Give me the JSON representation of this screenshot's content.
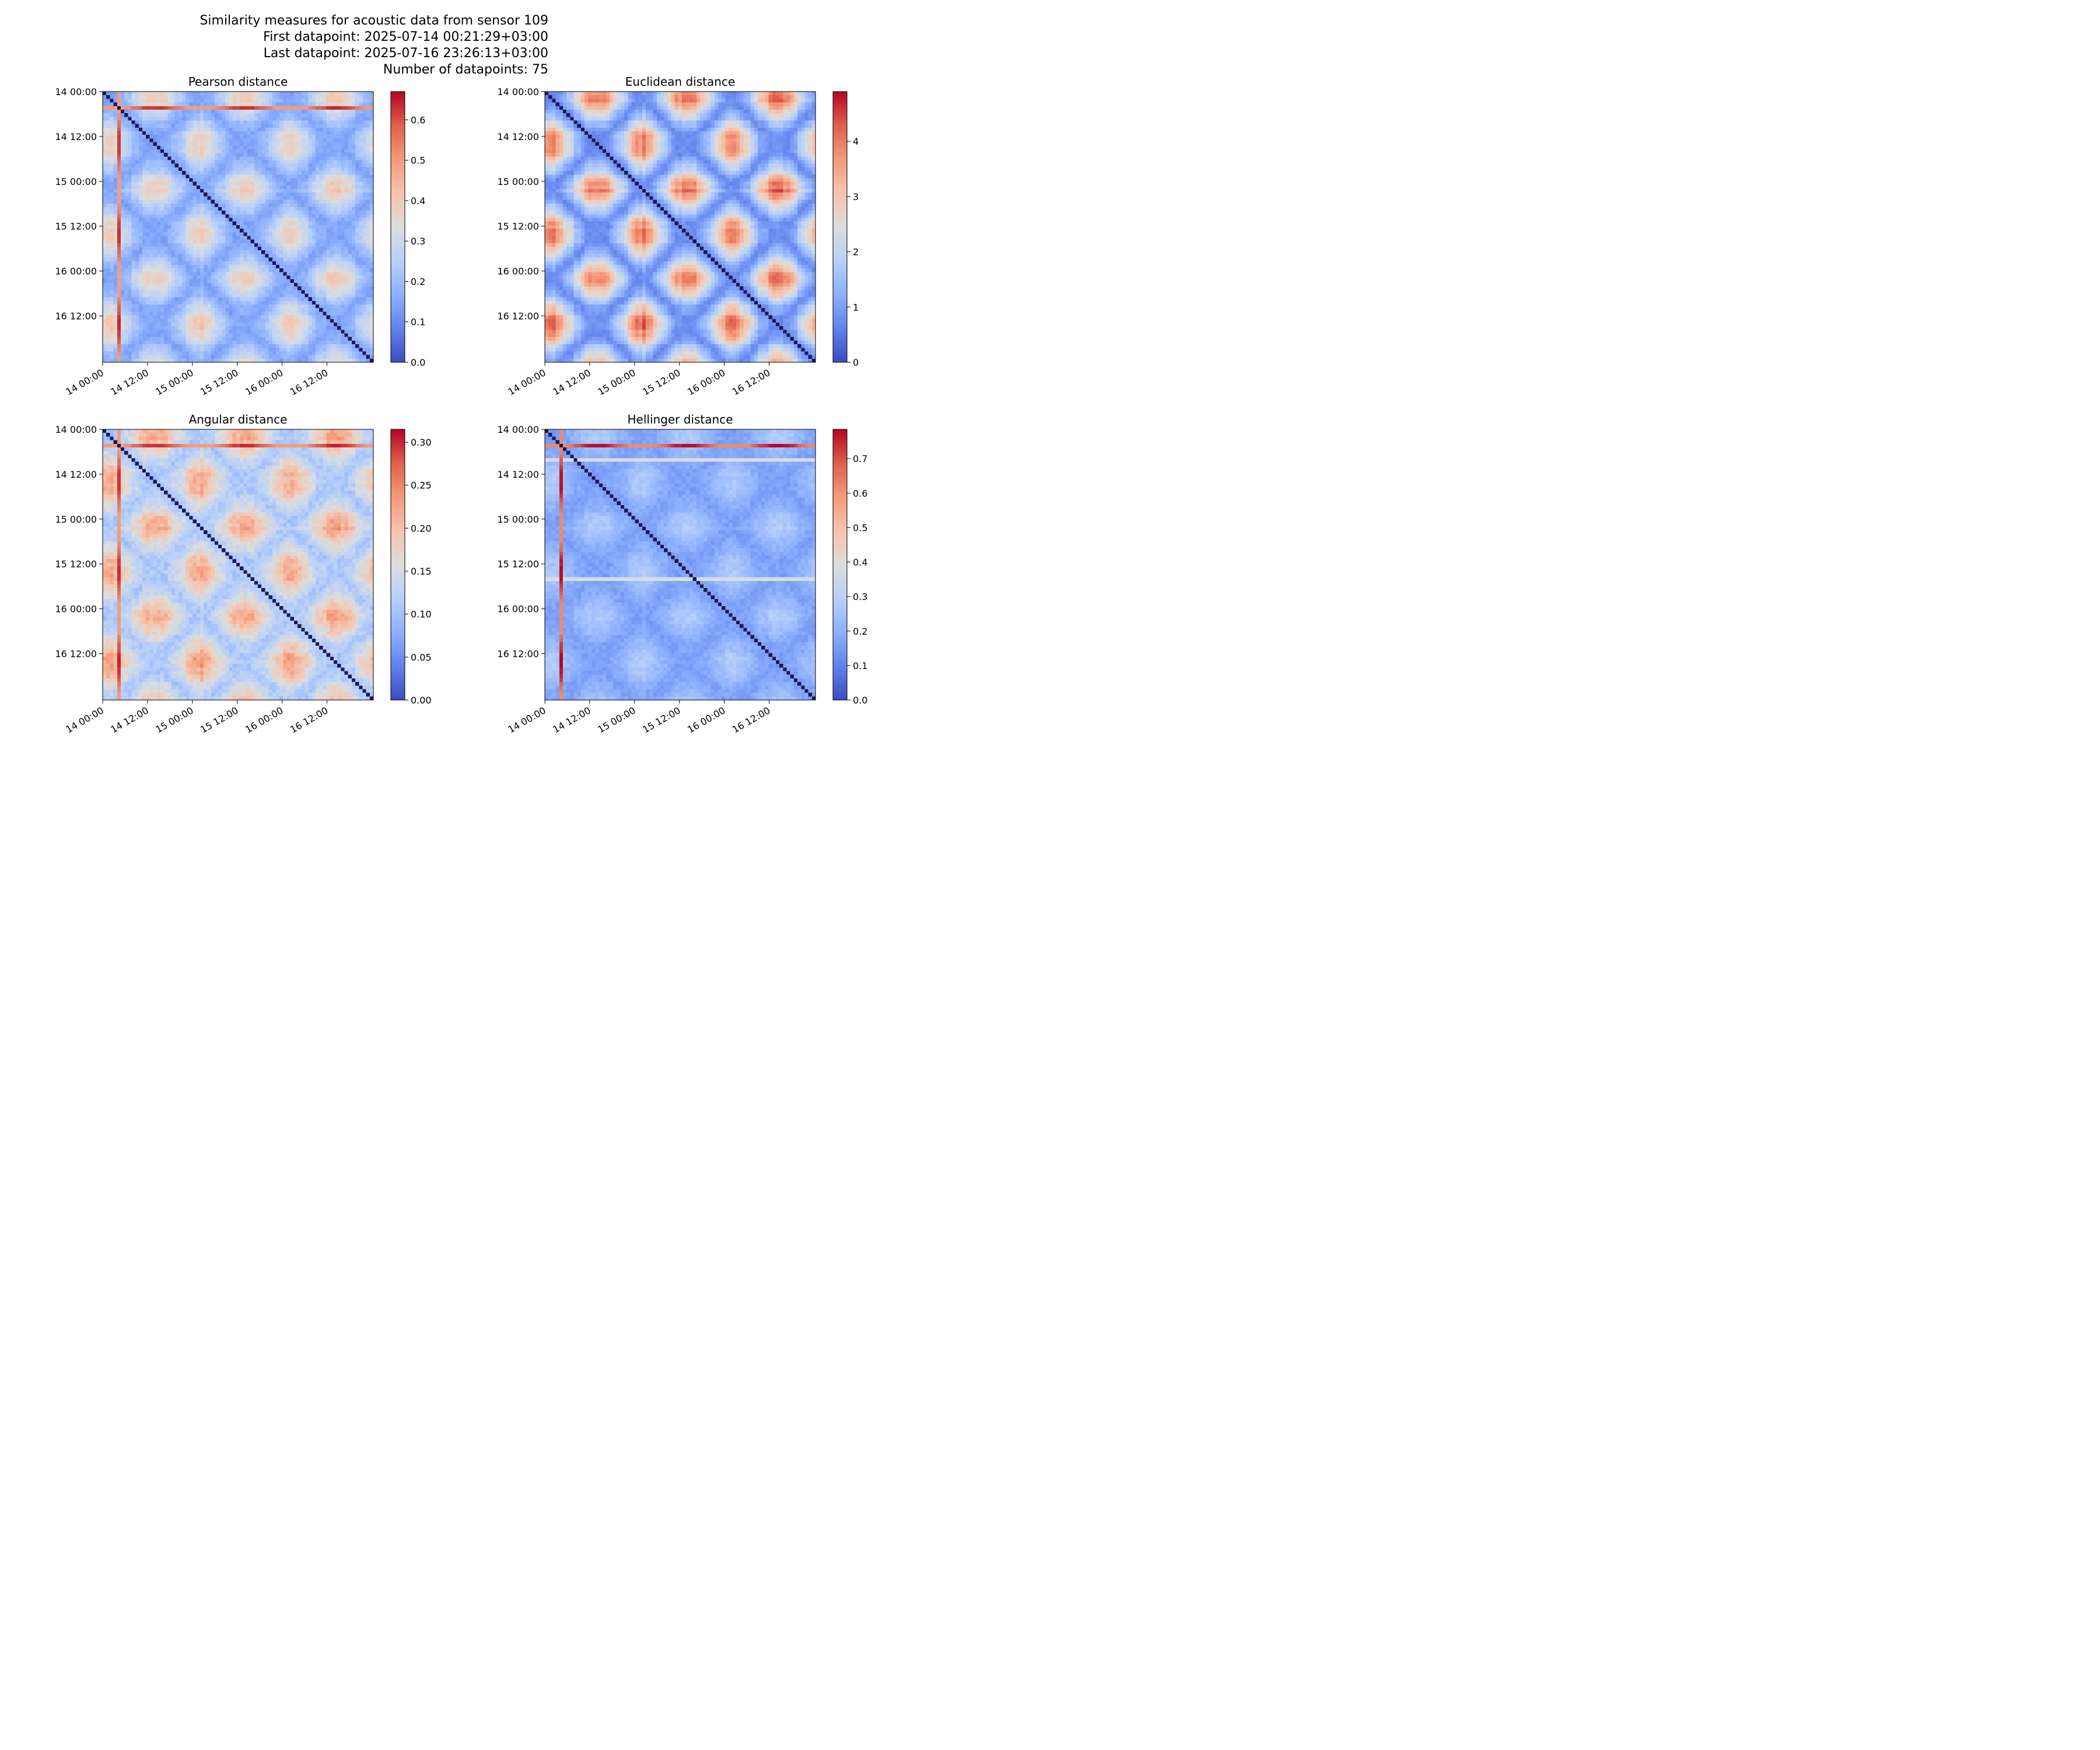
{
  "suptitle_lines": [
    "Similarity measures for acoustic data from sensor 109",
    "First datapoint: 2025-07-14 00:21:29+03:00",
    "Last datapoint: 2025-07-16 23:26:13+03:00",
    "Number of datapoints: 75"
  ],
  "chart_data": [
    {
      "type": "heatmap",
      "title": "Pearson distance",
      "n": 75,
      "x_ticks": [
        "14 00:00",
        "14 12:00",
        "15 00:00",
        "15 12:00",
        "16 00:00",
        "16 12:00"
      ],
      "y_ticks": [
        "14 00:00",
        "14 12:00",
        "15 00:00",
        "15 12:00",
        "16 00:00",
        "16 12:00"
      ],
      "colormap": "coolwarm",
      "colorbar_range": [
        0,
        0.67
      ],
      "colorbar_ticks": [
        "0.0",
        "0.1",
        "0.2",
        "0.3",
        "0.4",
        "0.5",
        "0.6"
      ],
      "colorbar_values": [
        0,
        0.1,
        0.2,
        0.3,
        0.4,
        0.5,
        0.6
      ],
      "outlier_index": 4,
      "outlier_level": 0.55,
      "base_level": 0.16,
      "day_night_amplitude": 0.26,
      "secondary_row": 4
    },
    {
      "type": "heatmap",
      "title": "Euclidean distance",
      "n": 75,
      "x_ticks": [
        "14 00:00",
        "14 12:00",
        "15 00:00",
        "15 12:00",
        "16 00:00",
        "16 12:00"
      ],
      "y_ticks": [
        "14 00:00",
        "14 12:00",
        "15 00:00",
        "15 12:00",
        "16 00:00",
        "16 12:00"
      ],
      "colormap": "coolwarm",
      "colorbar_range": [
        0,
        4.9
      ],
      "colorbar_ticks": [
        "0",
        "1",
        "2",
        "3",
        "4"
      ],
      "colorbar_values": [
        0,
        1,
        2,
        3,
        4
      ],
      "outlier_index": null,
      "outlier_level": 0,
      "base_level": 0.8,
      "day_night_amplitude": 3.4,
      "secondary_row": null
    },
    {
      "type": "heatmap",
      "title": "Angular distance",
      "n": 75,
      "x_ticks": [
        "14 00:00",
        "14 12:00",
        "15 00:00",
        "15 12:00",
        "16 00:00",
        "16 12:00"
      ],
      "y_ticks": [
        "14 00:00",
        "14 12:00",
        "15 00:00",
        "15 12:00",
        "16 00:00",
        "16 12:00"
      ],
      "colormap": "coolwarm",
      "colorbar_range": [
        0,
        0.315
      ],
      "colorbar_ticks": [
        "0.00",
        "0.05",
        "0.10",
        "0.15",
        "0.20",
        "0.25",
        "0.30"
      ],
      "colorbar_values": [
        0,
        0.05,
        0.1,
        0.15,
        0.2,
        0.25,
        0.3
      ],
      "outlier_index": 4,
      "outlier_level": 0.26,
      "base_level": 0.12,
      "day_night_amplitude": 0.12,
      "secondary_row": 4
    },
    {
      "type": "heatmap",
      "title": "Hellinger distance",
      "n": 75,
      "x_ticks": [
        "14 00:00",
        "14 12:00",
        "15 00:00",
        "15 12:00",
        "16 00:00",
        "16 12:00"
      ],
      "y_ticks": [
        "14 00:00",
        "14 12:00",
        "15 00:00",
        "15 12:00",
        "16 00:00",
        "16 12:00"
      ],
      "colormap": "coolwarm",
      "colorbar_range": [
        0,
        0.785
      ],
      "colorbar_ticks": [
        "0.0",
        "0.1",
        "0.2",
        "0.3",
        "0.4",
        "0.5",
        "0.6",
        "0.7"
      ],
      "colorbar_values": [
        0,
        0.1,
        0.2,
        0.3,
        0.4,
        0.5,
        0.6,
        0.7
      ],
      "outlier_index": 4,
      "outlier_level": 0.68,
      "base_level": 0.18,
      "day_night_amplitude": 0.12,
      "secondary_row": null
    }
  ]
}
